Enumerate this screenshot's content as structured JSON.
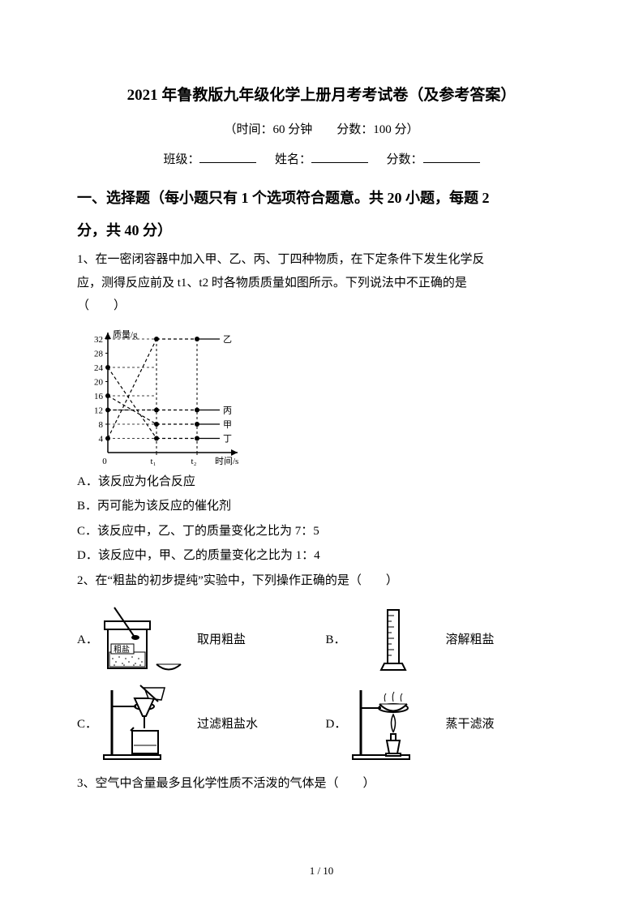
{
  "header": {
    "title": "2021 年鲁教版九年级化学上册月考考试卷（及参考答案）",
    "time_score": "（时间：60 分钟　　分数：100 分）",
    "class_label": "班级：",
    "name_label": "姓名：",
    "score_label": "分数："
  },
  "section1": {
    "heading_line1": "一、选择题（每小题只有 1 个选项符合题意。共 20 小题，每题 2",
    "heading_line2": "分，共 40 分）"
  },
  "q1": {
    "stem1": "1、在一密闭容器中加入甲、乙、丙、丁四种物质，在下定条件下发生化学反",
    "stem2": "应，测得反应前及 t1、t2 时各物质质量如图所示。下列说法中不正确的是",
    "stem3": "（　　）",
    "optA": "A．该反应为化合反应",
    "optB": "B．丙可能为该反应的催化剂",
    "optC": "C．该反应中，乙、丁的质量变化之比为 7：5",
    "optD": "D．该反应中，甲、乙的质量变化之比为 1：4",
    "chart": {
      "y_label": "质量/g",
      "x_label": "时间/s",
      "y_ticks": [
        4,
        8,
        12,
        16,
        20,
        24,
        28,
        32
      ],
      "x_ticks": [
        "0",
        "t₁",
        "t₂"
      ],
      "series_labels": [
        "乙",
        "丙",
        "甲",
        "丁"
      ],
      "series": {
        "jia": [
          16,
          8,
          8
        ],
        "yi": [
          4,
          32,
          32
        ],
        "bing": [
          12,
          12,
          12
        ],
        "ding": [
          24,
          4,
          4
        ]
      },
      "axis_color": "#000000",
      "line_color": "#000000",
      "dash_color": "#000000",
      "font_size": 11
    }
  },
  "q2": {
    "stem": "2、在“粗盐的初步提纯”实验中，下列操作正确的是（　　）",
    "A": {
      "letter": "A．",
      "label": "取用粗盐",
      "jar_label": "粗盐"
    },
    "B": {
      "letter": "B．",
      "label": "溶解粗盐"
    },
    "C": {
      "letter": "C．",
      "label": "过滤粗盐水"
    },
    "D": {
      "letter": "D．",
      "label": "蒸干滤液"
    }
  },
  "q3": {
    "stem": "3、空气中含量最多且化学性质不活泼的气体是（　　）"
  },
  "footer": {
    "page": "1  /  10"
  }
}
